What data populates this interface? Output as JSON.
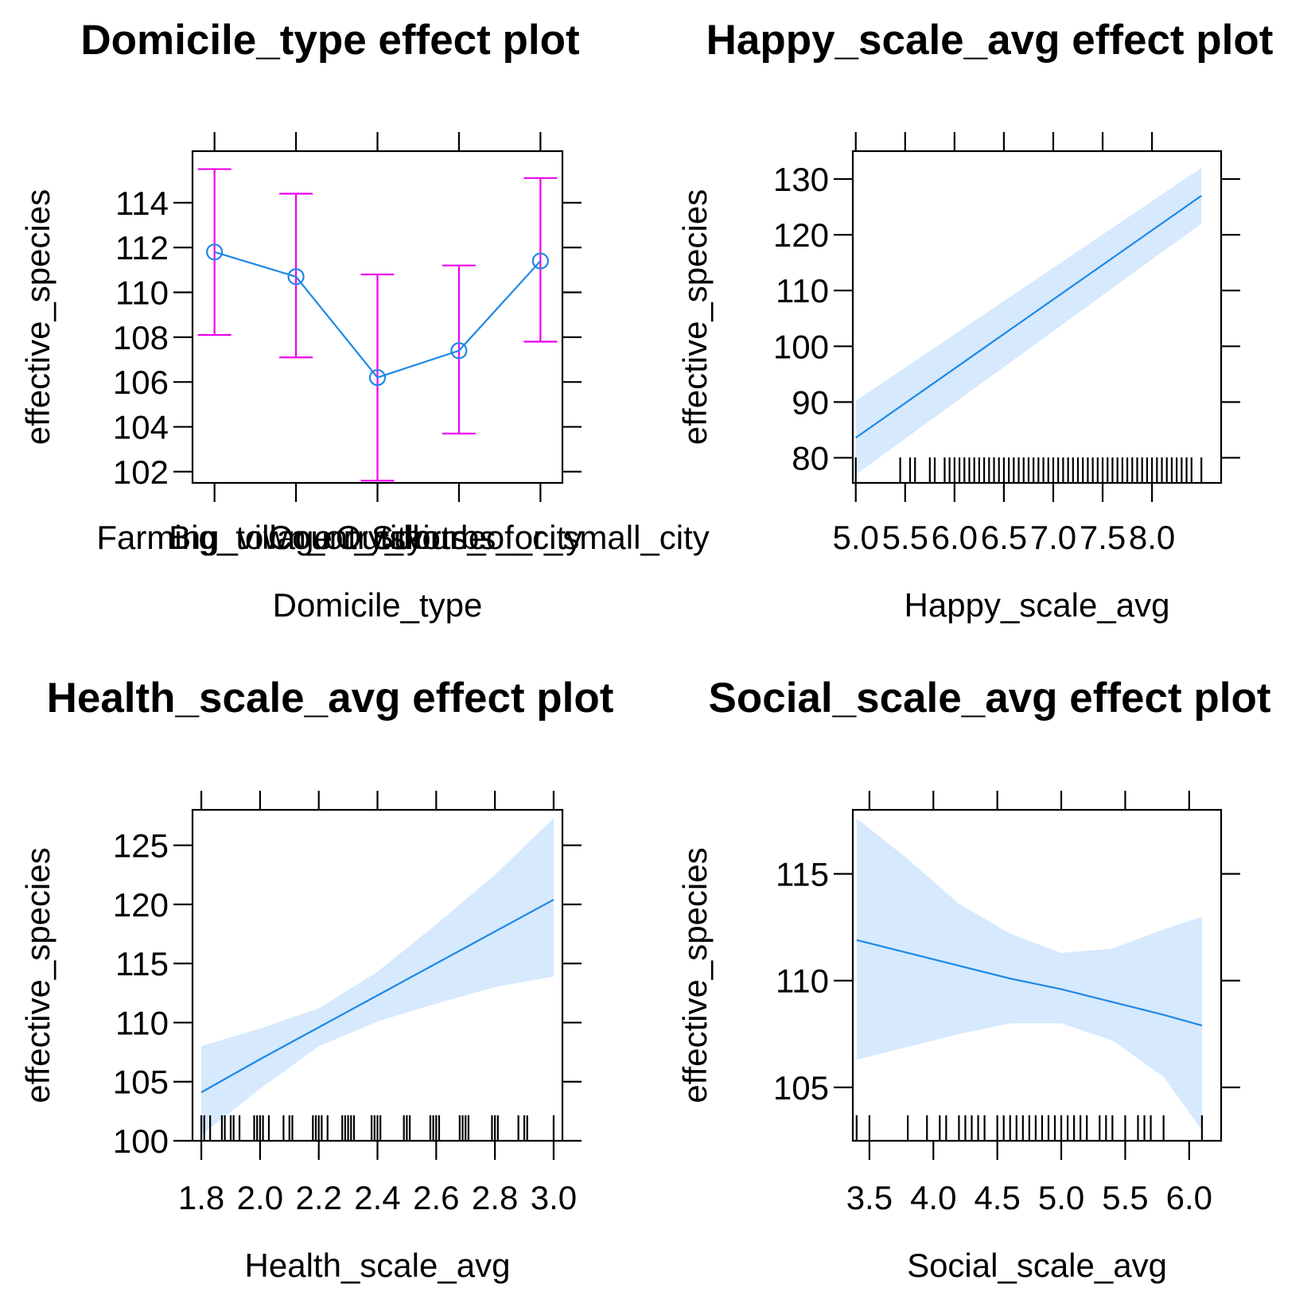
{
  "colors": {
    "line": "#1E88E5",
    "band": "#D6E9FD",
    "errorbar": "#EE00EE",
    "axis": "#000000"
  },
  "chart_data": [
    {
      "type": "line",
      "title": "Domicile_type effect plot",
      "xlabel": "Domicile_type",
      "ylabel": "effective_species",
      "categories": [
        "Farming_village",
        "Big_town_or_city",
        "Country_home",
        "Outskirts_of_city",
        "Suburbs_or_small_city"
      ],
      "values": [
        111.8,
        110.7,
        106.2,
        107.4,
        111.4
      ],
      "lower": [
        108.1,
        107.1,
        101.6,
        103.7,
        107.8
      ],
      "upper": [
        115.5,
        114.4,
        110.8,
        111.2,
        115.1
      ],
      "ylim": [
        101.5,
        116.3
      ],
      "yticks": [
        102,
        104,
        106,
        108,
        110,
        112,
        114
      ],
      "ytick_labels": [
        "102",
        "104",
        "106",
        "108",
        "110",
        "112",
        "114"
      ],
      "errorbars": true,
      "grid": false
    },
    {
      "type": "line",
      "title": "Happy_scale_avg effect plot",
      "xlabel": "Happy_scale_avg",
      "ylabel": "effective_species",
      "x": [
        5.0,
        8.5
      ],
      "values": [
        83.6,
        127.0
      ],
      "lower": [
        77.0,
        122.0
      ],
      "upper": [
        90.2,
        132.0
      ],
      "xlim": [
        4.97,
        8.7
      ],
      "ylim": [
        75.5,
        135.0
      ],
      "xticks": [
        5.0,
        5.5,
        6.0,
        6.5,
        7.0,
        7.5,
        8.0
      ],
      "xtick_labels": [
        "5.0",
        "5.5",
        "6.0",
        "6.5",
        "7.0",
        "7.5",
        "8.0"
      ],
      "yticks": [
        80,
        90,
        100,
        110,
        120,
        130
      ],
      "ytick_labels": [
        "80",
        "90",
        "100",
        "110",
        "120",
        "130"
      ],
      "rug": [
        5.0,
        5.45,
        5.55,
        5.6,
        5.75,
        5.8,
        5.9,
        5.95,
        6.0,
        6.05,
        6.1,
        6.15,
        6.2,
        6.25,
        6.3,
        6.35,
        6.4,
        6.45,
        6.5,
        6.55,
        6.6,
        6.65,
        6.7,
        6.75,
        6.8,
        6.85,
        6.9,
        6.95,
        7.0,
        7.05,
        7.1,
        7.15,
        7.2,
        7.25,
        7.3,
        7.35,
        7.4,
        7.45,
        7.5,
        7.55,
        7.6,
        7.65,
        7.7,
        7.75,
        7.8,
        7.85,
        7.9,
        7.95,
        8.0,
        8.05,
        8.1,
        8.15,
        8.2,
        8.25,
        8.3,
        8.35,
        8.4,
        8.5
      ],
      "grid": false
    },
    {
      "type": "line",
      "title": "Health_scale_avg effect plot",
      "xlabel": "Health_scale_avg",
      "ylabel": "effective_species",
      "x": [
        1.8,
        2.0,
        2.2,
        2.4,
        2.6,
        2.8,
        3.0
      ],
      "values": [
        104.1,
        106.9,
        109.6,
        112.3,
        115.0,
        117.7,
        120.4
      ],
      "lower": [
        100.5,
        104.4,
        108.0,
        110.1,
        111.6,
        113.0,
        113.9
      ],
      "upper": [
        108.0,
        109.5,
        111.2,
        114.3,
        118.3,
        122.5,
        127.3
      ],
      "xlim": [
        1.77,
        3.03
      ],
      "ylim": [
        100.0,
        128.0
      ],
      "xticks": [
        1.8,
        2.0,
        2.2,
        2.4,
        2.6,
        2.8,
        3.0
      ],
      "xtick_labels": [
        "1.8",
        "2.0",
        "2.2",
        "2.4",
        "2.6",
        "2.8",
        "3.0"
      ],
      "yticks": [
        100,
        105,
        110,
        115,
        120,
        125
      ],
      "ytick_labels": [
        "100",
        "105",
        "110",
        "115",
        "120",
        "125"
      ],
      "rug": [
        1.8,
        1.81,
        1.83,
        1.87,
        1.88,
        1.9,
        1.91,
        1.93,
        1.98,
        1.99,
        2.0,
        2.01,
        2.03,
        2.08,
        2.1,
        2.11,
        2.18,
        2.19,
        2.2,
        2.21,
        2.23,
        2.28,
        2.29,
        2.3,
        2.31,
        2.32,
        2.38,
        2.39,
        2.4,
        2.41,
        2.49,
        2.5,
        2.51,
        2.58,
        2.59,
        2.6,
        2.61,
        2.68,
        2.69,
        2.7,
        2.71,
        2.79,
        2.8,
        2.81,
        2.88,
        2.9,
        2.91,
        3.0
      ],
      "grid": false
    },
    {
      "type": "line",
      "title": "Social_scale_avg effect plot",
      "xlabel": "Social_scale_avg",
      "ylabel": "effective_species",
      "x": [
        3.4,
        3.8,
        4.2,
        4.6,
        5.0,
        5.4,
        5.8,
        6.1
      ],
      "values": [
        111.9,
        111.3,
        110.7,
        110.1,
        109.6,
        109.0,
        108.4,
        107.9
      ],
      "lower": [
        106.3,
        106.9,
        107.5,
        108.0,
        108.0,
        107.2,
        105.5,
        103.0
      ],
      "upper": [
        117.6,
        115.7,
        113.6,
        112.2,
        111.3,
        111.5,
        112.4,
        113.0
      ],
      "xlim": [
        3.37,
        6.25
      ],
      "ylim": [
        102.5,
        118.0
      ],
      "xticks": [
        3.5,
        4.0,
        4.5,
        5.0,
        5.5,
        6.0
      ],
      "xtick_labels": [
        "3.5",
        "4.0",
        "4.5",
        "5.0",
        "5.5",
        "6.0"
      ],
      "yticks": [
        105,
        110,
        115
      ],
      "ytick_labels": [
        "105",
        "110",
        "115"
      ],
      "rug": [
        3.4,
        3.5,
        3.8,
        3.95,
        4.05,
        4.1,
        4.2,
        4.25,
        4.3,
        4.35,
        4.4,
        4.5,
        4.55,
        4.6,
        4.65,
        4.7,
        4.75,
        4.8,
        4.85,
        4.9,
        4.95,
        5.0,
        5.05,
        5.1,
        5.15,
        5.2,
        5.3,
        5.35,
        5.4,
        5.5,
        5.6,
        5.65,
        5.7,
        5.8,
        6.1
      ],
      "grid": false
    }
  ]
}
